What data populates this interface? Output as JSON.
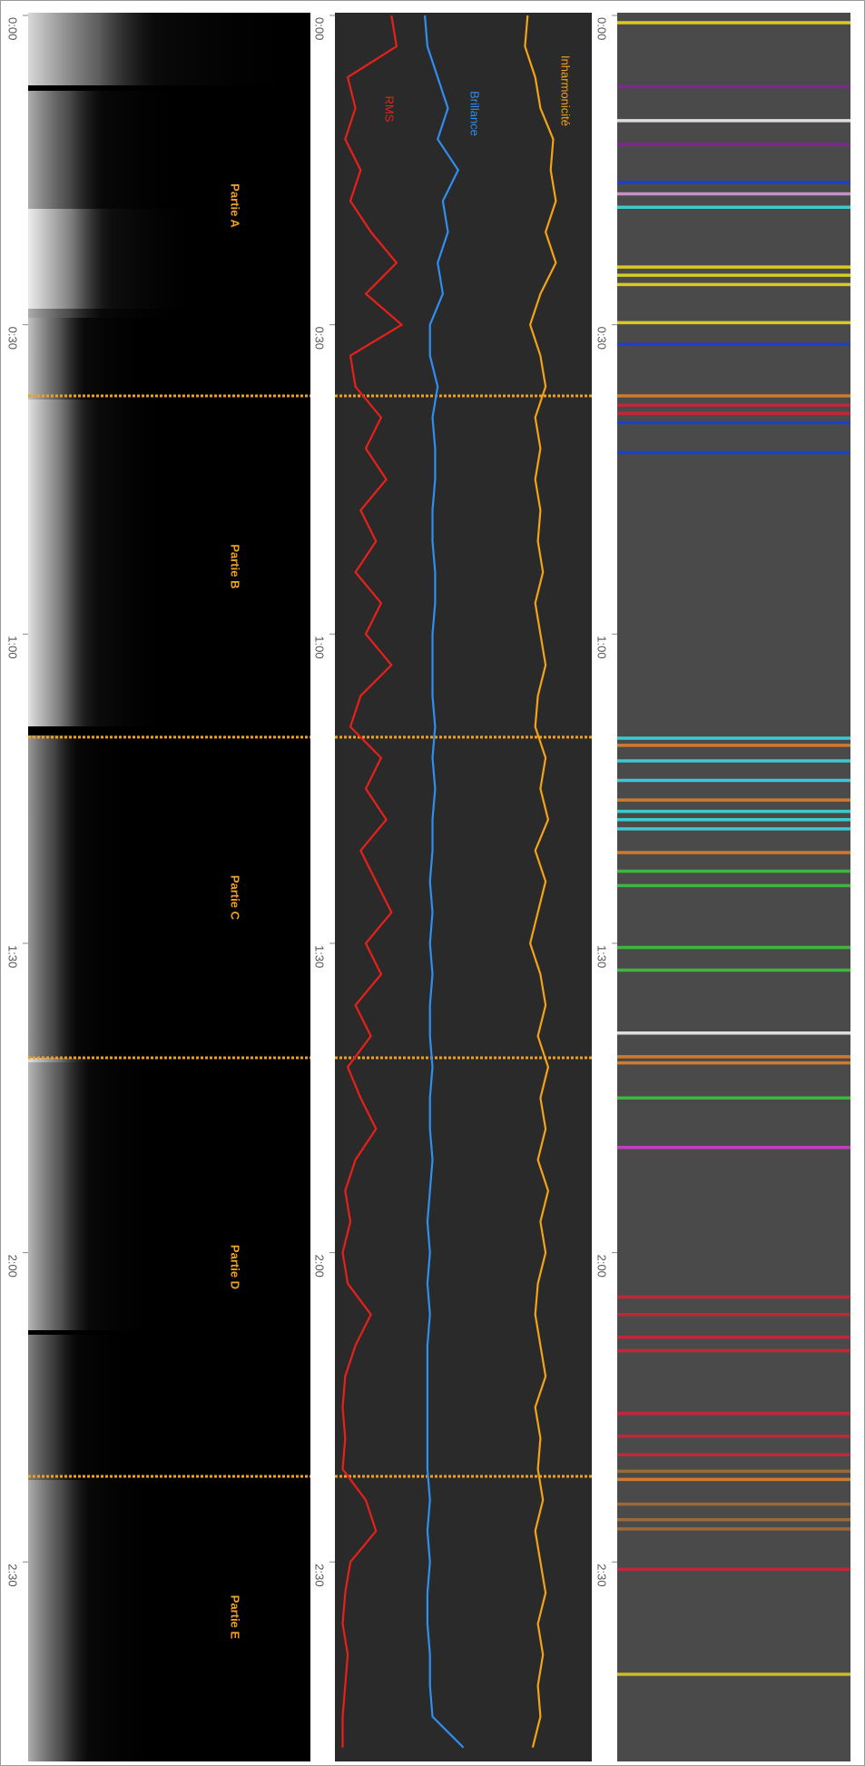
{
  "chart_data": {
    "type": "line",
    "xlim": [
      0,
      169
    ],
    "xticks": [
      {
        "value": 0,
        "label": "0:00"
      },
      {
        "value": 30,
        "label": "0:30"
      },
      {
        "value": 60,
        "label": "1:00"
      },
      {
        "value": 90,
        "label": "1:30"
      },
      {
        "value": 120,
        "label": "2:00"
      },
      {
        "value": 150,
        "label": "2:30"
      }
    ],
    "ylim": [
      0,
      1
    ],
    "sections": {
      "labels": [
        "Partie A",
        "Partie B",
        "Partie C",
        "Partie D",
        "Partie E"
      ],
      "boundaries": [
        36.9,
        70.0,
        101.1,
        141.7
      ],
      "color": "#f0a020"
    },
    "x": [
      0,
      3,
      6,
      9,
      12,
      15,
      18,
      21,
      24,
      27,
      30,
      33,
      36,
      39,
      42,
      45,
      48,
      51,
      54,
      57,
      60,
      63,
      66,
      69,
      72,
      75,
      78,
      81,
      84,
      87,
      90,
      93,
      96,
      99,
      102,
      105,
      108,
      111,
      114,
      117,
      120,
      123,
      126,
      129,
      132,
      135,
      138,
      141,
      144,
      147,
      150,
      153,
      156,
      159,
      162,
      165,
      168
    ],
    "series": [
      {
        "name": "RMS",
        "color": "#e8201a",
        "values": [
          0.22,
          0.24,
          0.05,
          0.08,
          0.04,
          0.1,
          0.06,
          0.14,
          0.24,
          0.12,
          0.26,
          0.06,
          0.08,
          0.18,
          0.12,
          0.2,
          0.1,
          0.16,
          0.08,
          0.18,
          0.12,
          0.22,
          0.1,
          0.06,
          0.18,
          0.12,
          0.2,
          0.1,
          0.16,
          0.22,
          0.12,
          0.18,
          0.08,
          0.14,
          0.05,
          0.1,
          0.16,
          0.08,
          0.04,
          0.06,
          0.03,
          0.05,
          0.14,
          0.08,
          0.04,
          0.03,
          0.04,
          0.03,
          0.12,
          0.16,
          0.06,
          0.04,
          0.03,
          0.05,
          0.04,
          0.03,
          0.03
        ]
      },
      {
        "name": "Brillance",
        "color": "#2f8ef0",
        "values": [
          0.35,
          0.36,
          0.4,
          0.44,
          0.4,
          0.48,
          0.42,
          0.44,
          0.4,
          0.42,
          0.37,
          0.37,
          0.4,
          0.38,
          0.39,
          0.39,
          0.38,
          0.38,
          0.39,
          0.39,
          0.38,
          0.38,
          0.38,
          0.39,
          0.38,
          0.39,
          0.38,
          0.38,
          0.37,
          0.38,
          0.37,
          0.38,
          0.37,
          0.37,
          0.38,
          0.37,
          0.37,
          0.38,
          0.37,
          0.36,
          0.37,
          0.36,
          0.37,
          0.36,
          0.36,
          0.36,
          0.36,
          0.36,
          0.37,
          0.36,
          0.37,
          0.36,
          0.36,
          0.37,
          0.37,
          0.38,
          0.5
        ]
      },
      {
        "name": "Inharmonicité",
        "color": "#f5a316",
        "values": [
          0.75,
          0.74,
          0.78,
          0.8,
          0.85,
          0.84,
          0.86,
          0.82,
          0.86,
          0.8,
          0.76,
          0.8,
          0.82,
          0.78,
          0.8,
          0.78,
          0.8,
          0.79,
          0.81,
          0.78,
          0.8,
          0.82,
          0.79,
          0.78,
          0.82,
          0.8,
          0.83,
          0.78,
          0.82,
          0.79,
          0.76,
          0.8,
          0.82,
          0.79,
          0.83,
          0.8,
          0.82,
          0.79,
          0.83,
          0.8,
          0.82,
          0.79,
          0.78,
          0.8,
          0.82,
          0.78,
          0.8,
          0.79,
          0.81,
          0.78,
          0.8,
          0.82,
          0.79,
          0.81,
          0.79,
          0.8,
          0.77
        ]
      }
    ],
    "markers": {
      "times": [
        0.7,
        6.9,
        10.2,
        12.5,
        16.2,
        17.3,
        18.6,
        24.4,
        25.2,
        26.1,
        29.8,
        31.9,
        36.9,
        37.8,
        38.6,
        39.5,
        42.4,
        70.1,
        70.8,
        72.3,
        74.2,
        76.1,
        77.2,
        78.0,
        78.9,
        81.2,
        83.0,
        84.4,
        90.4,
        92.6,
        98.7,
        101.0,
        101.6,
        105.0,
        109.8,
        124.3,
        126.0,
        128.2,
        129.5,
        135.6,
        137.8,
        139.6,
        141.2,
        142.0,
        144.4,
        145.9,
        146.8,
        150.7,
        160.9
      ],
      "colors": [
        "#d8cc20",
        "#7a2a8a",
        "#dddddd",
        "#7a2a8a",
        "#1f3fc8",
        "#c890c8",
        "#3ec8d0",
        "#d8cc20",
        "#d8cc20",
        "#d8cc20",
        "#d8cc20",
        "#1f3fc8",
        "#d07a30",
        "#c0283a",
        "#c0283a",
        "#1f3fc8",
        "#1f3fc8",
        "#3ec8d0",
        "#d07a30",
        "#3ec8d0",
        "#3ec8d0",
        "#d07a30",
        "#3ec8d0",
        "#3ec8d0",
        "#3ec8d0",
        "#d07a30",
        "#3cb83c",
        "#3cb83c",
        "#3cb83c",
        "#3cb83c",
        "#dddddd",
        "#d07a30",
        "#d07a30",
        "#3cb83c",
        "#c040c0",
        "#c0283a",
        "#c0283a",
        "#c0283a",
        "#c0283a",
        "#c0283a",
        "#c0283a",
        "#c0283a",
        "#9a6a3a",
        "#d07a30",
        "#9a6a3a",
        "#9a6a3a",
        "#9a6a3a",
        "#c0283a",
        "#c8c020"
      ]
    }
  }
}
